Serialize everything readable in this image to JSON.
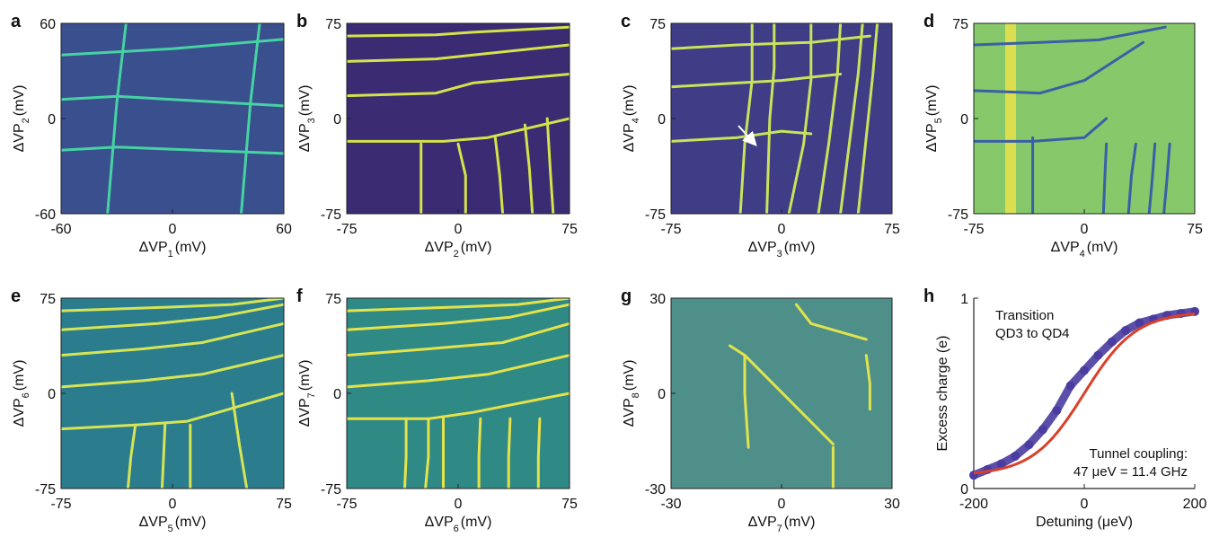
{
  "chart_data": [
    {
      "type": "heatmap",
      "panel": "a",
      "xlabel_base": "ΔVP",
      "xlabel_sub": "1",
      "xlabel_unit": "(mV)",
      "ylabel_base": "ΔVP",
      "ylabel_sub": "2",
      "ylabel_unit": "(mV)",
      "xlim": [
        -60,
        60
      ],
      "ylim": [
        -60,
        60
      ],
      "xticks": [
        "-60",
        "0",
        "60"
      ],
      "yticks": [
        "-60",
        "0",
        "60"
      ],
      "colors": {
        "bg": "#3a4f8e",
        "line": "#46d3a2"
      },
      "vlines": [
        {
          "x": [
            -25,
            -30,
            -35
          ],
          "y": [
            60,
            10,
            -60
          ]
        },
        {
          "x": [
            47,
            42,
            37
          ],
          "y": [
            60,
            10,
            -60
          ]
        }
      ],
      "hlines": [
        {
          "x": [
            -60,
            -30,
            60
          ],
          "y": [
            -20,
            -18,
            -22
          ]
        },
        {
          "x": [
            -60,
            -30,
            60
          ],
          "y": [
            12,
            14,
            8
          ]
        },
        {
          "x": [
            -60,
            0,
            60
          ],
          "y": [
            40,
            44,
            50
          ]
        }
      ]
    },
    {
      "type": "heatmap",
      "panel": "b",
      "xlabel_base": "ΔVP",
      "xlabel_sub": "2",
      "xlabel_unit": "(mV)",
      "ylabel_base": "ΔVP",
      "ylabel_sub": "3",
      "ylabel_unit": "(mV)",
      "xlim": [
        -75,
        75
      ],
      "ylim": [
        -75,
        75
      ],
      "xticks": [
        "-75",
        "0",
        "75"
      ],
      "yticks": [
        "-75",
        "0",
        "75"
      ],
      "colors": {
        "bg": "#3b2b72",
        "line": "#d4e34a"
      },
      "vlines": [
        {
          "x": [
            -25,
            -25,
            -25
          ],
          "y": [
            -20,
            -45,
            -75
          ]
        },
        {
          "x": [
            0,
            5,
            5
          ],
          "y": [
            -20,
            -45,
            -75
          ]
        },
        {
          "x": [
            25,
            28,
            30
          ],
          "y": [
            -15,
            -45,
            -75
          ]
        },
        {
          "x": [
            45,
            48,
            50
          ],
          "y": [
            -5,
            -40,
            -75
          ]
        },
        {
          "x": [
            60,
            62,
            64
          ],
          "y": [
            0,
            -40,
            -75
          ]
        }
      ],
      "hlines": [
        {
          "x": [
            -75,
            -10,
            20,
            75
          ],
          "y": [
            -18,
            -18,
            -15,
            0
          ]
        },
        {
          "x": [
            -75,
            -15,
            10,
            75
          ],
          "y": [
            18,
            20,
            28,
            35
          ]
        },
        {
          "x": [
            -75,
            -15,
            10,
            75
          ],
          "y": [
            45,
            47,
            50,
            58
          ]
        },
        {
          "x": [
            -75,
            -15,
            10,
            75
          ],
          "y": [
            65,
            66,
            68,
            72
          ]
        }
      ]
    },
    {
      "type": "heatmap",
      "panel": "c",
      "xlabel_base": "ΔVP",
      "xlabel_sub": "3",
      "xlabel_unit": "(mV)",
      "ylabel_base": "ΔVP",
      "ylabel_sub": "4",
      "ylabel_unit": "(mV)",
      "xlim": [
        -75,
        75
      ],
      "ylim": [
        -75,
        75
      ],
      "xticks": [
        "-75",
        "0",
        "75"
      ],
      "yticks": [
        "-75",
        "0",
        "75"
      ],
      "colors": {
        "bg": "#3e3d86",
        "line": "#c9e45a"
      },
      "vlines": [
        {
          "x": [
            -20,
            -20,
            -25,
            -28
          ],
          "y": [
            75,
            30,
            -20,
            -75
          ]
        },
        {
          "x": [
            -5,
            -5,
            -8,
            -10
          ],
          "y": [
            75,
            40,
            0,
            -75
          ]
        },
        {
          "x": [
            20,
            20,
            15,
            5
          ],
          "y": [
            75,
            30,
            -20,
            -75
          ]
        },
        {
          "x": [
            40,
            38,
            32,
            25
          ],
          "y": [
            75,
            35,
            -20,
            -75
          ]
        },
        {
          "x": [
            55,
            52,
            46,
            40
          ],
          "y": [
            75,
            35,
            -20,
            -75
          ]
        },
        {
          "x": [
            65,
            62,
            57,
            52
          ],
          "y": [
            75,
            35,
            -20,
            -75
          ]
        }
      ],
      "hlines": [
        {
          "x": [
            -75,
            -30,
            0,
            20
          ],
          "y": [
            -18,
            -15,
            -10,
            -12
          ]
        },
        {
          "x": [
            -75,
            -30,
            0,
            40
          ],
          "y": [
            25,
            28,
            30,
            35
          ]
        },
        {
          "x": [
            -75,
            -30,
            20,
            60
          ],
          "y": [
            55,
            58,
            60,
            65
          ]
        }
      ]
    },
    {
      "type": "heatmap",
      "panel": "d",
      "xlabel_base": "ΔVP",
      "xlabel_sub": "4",
      "xlabel_unit": "(mV)",
      "ylabel_base": "ΔVP",
      "ylabel_sub": "5",
      "ylabel_unit": "(mV)",
      "xlim": [
        -75,
        75
      ],
      "ylim": [
        -75,
        75
      ],
      "xticks": [
        "-75",
        "0",
        "75"
      ],
      "yticks": [
        "-75",
        "0",
        "75"
      ],
      "colors": {
        "bg": "#86c86a",
        "line": "#3b5fa6",
        "band": "#e9e24a"
      },
      "band": {
        "x": -50,
        "width": 12
      },
      "vlines": [
        {
          "x": [
            -35,
            -35,
            -35
          ],
          "y": [
            -15,
            -45,
            -75
          ]
        },
        {
          "x": [
            15,
            14,
            13
          ],
          "y": [
            -20,
            -45,
            -75
          ]
        },
        {
          "x": [
            35,
            32,
            30
          ],
          "y": [
            -20,
            -45,
            -75
          ]
        },
        {
          "x": [
            48,
            46,
            44
          ],
          "y": [
            -20,
            -50,
            -75
          ]
        },
        {
          "x": [
            58,
            56,
            54
          ],
          "y": [
            -20,
            -50,
            -75
          ]
        }
      ],
      "hlines": [
        {
          "x": [
            -75,
            -35,
            0,
            15
          ],
          "y": [
            -18,
            -18,
            -15,
            0
          ]
        },
        {
          "x": [
            -75,
            -30,
            0,
            40
          ],
          "y": [
            22,
            20,
            30,
            60
          ]
        },
        {
          "x": [
            -75,
            -30,
            10,
            55
          ],
          "y": [
            58,
            60,
            62,
            72
          ]
        }
      ]
    },
    {
      "type": "heatmap",
      "panel": "e",
      "xlabel_base": "ΔVP",
      "xlabel_sub": "5",
      "xlabel_unit": "(mV)",
      "ylabel_base": "ΔVP",
      "ylabel_sub": "6",
      "ylabel_unit": "(mV)",
      "xlim": [
        -75,
        75
      ],
      "ylim": [
        -75,
        75
      ],
      "xticks": [
        "-75",
        "0",
        "75"
      ],
      "yticks": [
        "-75",
        "0",
        "75"
      ],
      "colors": {
        "bg": "#2b7d8e",
        "line": "#d7e554"
      },
      "vlines": [
        {
          "x": [
            -25,
            -28,
            -30
          ],
          "y": [
            -25,
            -50,
            -75
          ]
        },
        {
          "x": [
            -5,
            -6,
            -7
          ],
          "y": [
            -25,
            -50,
            -75
          ]
        },
        {
          "x": [
            12,
            12,
            12
          ],
          "y": [
            -25,
            -50,
            -75
          ]
        },
        {
          "x": [
            40,
            45,
            50
          ],
          "y": [
            0,
            -40,
            -75
          ]
        }
      ],
      "hlines": [
        {
          "x": [
            -75,
            -25,
            10,
            75
          ],
          "y": [
            -28,
            -25,
            -22,
            0
          ]
        },
        {
          "x": [
            -75,
            -20,
            20,
            75
          ],
          "y": [
            5,
            10,
            15,
            30
          ]
        },
        {
          "x": [
            -75,
            -20,
            20,
            75
          ],
          "y": [
            30,
            35,
            40,
            55
          ]
        },
        {
          "x": [
            -75,
            -10,
            30,
            75
          ],
          "y": [
            50,
            55,
            60,
            70
          ]
        },
        {
          "x": [
            -75,
            0,
            40,
            75
          ],
          "y": [
            65,
            68,
            70,
            75
          ]
        }
      ]
    },
    {
      "type": "heatmap",
      "panel": "f",
      "xlabel_base": "ΔVP",
      "xlabel_sub": "6",
      "xlabel_unit": "(mV)",
      "ylabel_base": "ΔVP",
      "ylabel_sub": "7",
      "ylabel_unit": "(mV)",
      "xlim": [
        -75,
        75
      ],
      "ylim": [
        -75,
        75
      ],
      "xticks": [
        "-75",
        "0",
        "75"
      ],
      "yticks": [
        "-75",
        "0",
        "75"
      ],
      "colors": {
        "bg": "#2f8a86",
        "line": "#e6e24a"
      },
      "vlines": [
        {
          "x": [
            -35,
            -35,
            -36
          ],
          "y": [
            -20,
            -50,
            -75
          ]
        },
        {
          "x": [
            -20,
            -20,
            -22
          ],
          "y": [
            -20,
            -50,
            -75
          ]
        },
        {
          "x": [
            -10,
            -10,
            -10
          ],
          "y": [
            -20,
            -50,
            -75
          ]
        },
        {
          "x": [
            15,
            14,
            14
          ],
          "y": [
            -20,
            -50,
            -75
          ]
        },
        {
          "x": [
            35,
            34,
            34
          ],
          "y": [
            -20,
            -50,
            -75
          ]
        },
        {
          "x": [
            55,
            54,
            54
          ],
          "y": [
            -20,
            -50,
            -75
          ]
        }
      ],
      "hlines": [
        {
          "x": [
            -75,
            -20,
            10,
            75
          ],
          "y": [
            -20,
            -20,
            -15,
            0
          ]
        },
        {
          "x": [
            -75,
            -20,
            20,
            75
          ],
          "y": [
            5,
            10,
            15,
            30
          ]
        },
        {
          "x": [
            -75,
            -20,
            30,
            75
          ],
          "y": [
            30,
            35,
            40,
            55
          ]
        },
        {
          "x": [
            -75,
            -10,
            35,
            75
          ],
          "y": [
            50,
            55,
            60,
            70
          ]
        },
        {
          "x": [
            -75,
            0,
            40,
            75
          ],
          "y": [
            65,
            68,
            70,
            75
          ]
        }
      ]
    },
    {
      "type": "heatmap",
      "panel": "g",
      "xlabel_base": "ΔVP",
      "xlabel_sub": "7",
      "xlabel_unit": "(mV)",
      "ylabel_base": "ΔVP",
      "ylabel_sub": "8",
      "ylabel_unit": "(mV)",
      "xlim": [
        -30,
        30
      ],
      "ylim": [
        -30,
        30
      ],
      "xticks": [
        "-30",
        "0",
        "30"
      ],
      "yticks": [
        "-30",
        "0",
        "30"
      ],
      "colors": {
        "bg": "#4f8f8a",
        "line": "#e0e44c"
      },
      "vlines": [
        {
          "x": [
            -10,
            -10,
            -9
          ],
          "y": [
            12,
            0,
            -17
          ]
        },
        {
          "x": [
            14,
            14,
            14
          ],
          "y": [
            -17,
            -24,
            -30
          ]
        },
        {
          "x": [
            23,
            24,
            24
          ],
          "y": [
            12,
            3,
            -5
          ]
        }
      ],
      "hlines": [
        {
          "x": [
            -14,
            -10,
            14
          ],
          "y": [
            15,
            12,
            -16
          ]
        },
        {
          "x": [
            4,
            8,
            23
          ],
          "y": [
            28,
            22,
            17
          ]
        }
      ]
    },
    {
      "type": "scatter",
      "panel": "h",
      "xlabel": "Detuning (μeV)",
      "ylabel": "Excess charge (e)",
      "xlim": [
        -200,
        200
      ],
      "ylim": [
        0,
        1
      ],
      "xticks": [
        "-200",
        "0",
        "200"
      ],
      "yticks": [
        "0",
        "1"
      ],
      "annotation1": "Transition",
      "annotation2": "QD3 to QD4",
      "annotation3": "Tunnel coupling:",
      "annotation4": "47 μeV = 11.4 GHz",
      "colors": {
        "data": "#4a3ca0",
        "fit": "#d9402a"
      },
      "x": [
        -200,
        -175,
        -150,
        -125,
        -100,
        -75,
        -50,
        -25,
        0,
        25,
        50,
        75,
        100,
        125,
        150,
        175,
        200
      ],
      "y": [
        0.07,
        0.1,
        0.13,
        0.17,
        0.23,
        0.31,
        0.41,
        0.54,
        0.62,
        0.7,
        0.77,
        0.83,
        0.87,
        0.89,
        0.91,
        0.92,
        0.93
      ]
    }
  ]
}
